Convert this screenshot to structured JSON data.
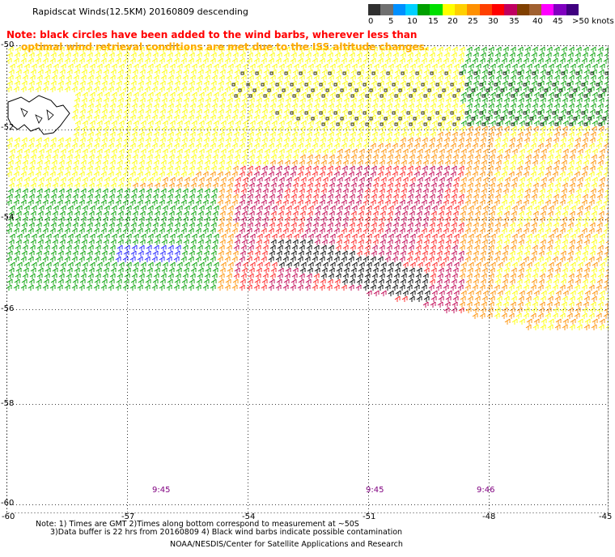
{
  "title": "Rapidscat Winds(12.5KM) 20160809 descending",
  "note_line1": "Note: black circles have been added to the wind barbs, wherever less than",
  "note_line2": "optimal wind retrieval conditions are met due to the ISS altitude changes.",
  "legend": {
    "labels": [
      "0",
      "5",
      "10",
      "15",
      "20",
      "25",
      "30",
      "35",
      "40",
      "45",
      ">50 knots"
    ],
    "colors": [
      "#303030",
      "#707070",
      "#0090ff",
      "#00d0ff",
      "#00a000",
      "#00e000",
      "#ffff00",
      "#ffd000",
      "#ff9000",
      "#ff4000",
      "#ff0000",
      "#c00060",
      "#804000",
      "#a06030",
      "#ff00ff",
      "#8000c0",
      "#400080"
    ]
  },
  "map": {
    "lat_labels": [
      "-50",
      "-52",
      "-54",
      "-56",
      "-58",
      "-60"
    ],
    "lon_labels": [
      "-60",
      "-57",
      "-54",
      "-51",
      "-48",
      "-45"
    ],
    "time_labels": [
      "9:45",
      "9:45",
      "9:46"
    ],
    "colors": {
      "calm": "#ffff00",
      "light": "#00a000",
      "moderate": "#ff9000",
      "strong": "#ff2020",
      "gale": "#c00050",
      "contaminated": "#000000",
      "blue": "#2020ff",
      "land": "#ffffff",
      "grid": "#000000"
    }
  },
  "footnote1": "Note: 1) Times are GMT 2)Times along bottom correspond to measurement at ~50S",
  "footnote2": "3)Data buffer is 22 hrs from 20160809 4) Black wind barbs indicate possible contamination",
  "credit": "NOAA/NESDIS/Center for Satellite Applications and Research"
}
